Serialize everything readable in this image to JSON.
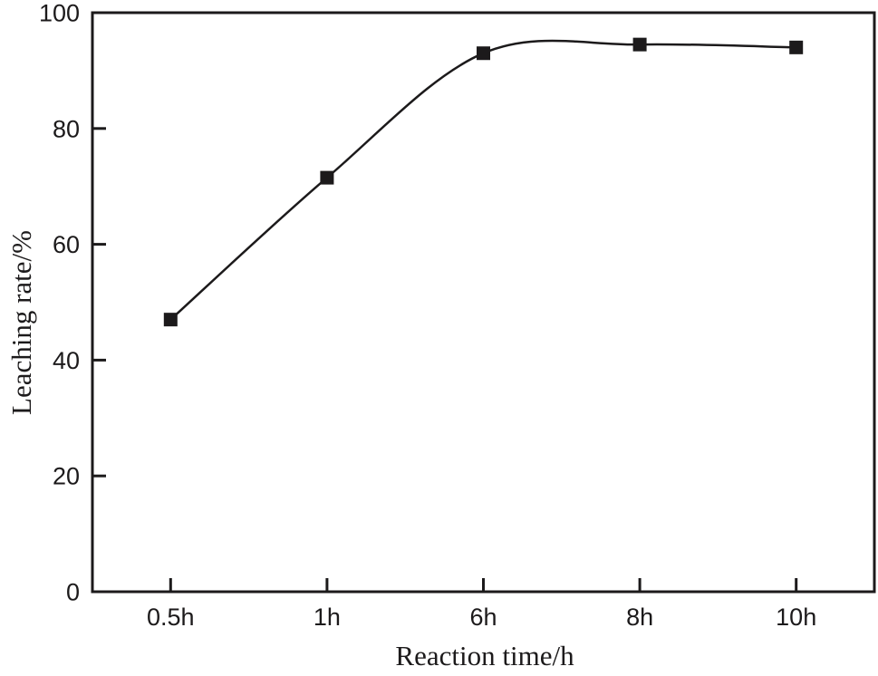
{
  "chart_data": {
    "type": "line",
    "title": "",
    "xlabel": "Reaction time/h",
    "ylabel": "Leaching rate/%",
    "categories": [
      "0.5h",
      "1h",
      "6h",
      "8h",
      "10h"
    ],
    "series": [
      {
        "name": "Leaching rate",
        "values": [
          47,
          71.5,
          93,
          94.5,
          94
        ]
      }
    ],
    "ylim": [
      0,
      100
    ],
    "y_ticks": [
      0,
      20,
      40,
      60,
      80,
      100
    ],
    "grid": false,
    "legend_position": "none",
    "marker": "square",
    "line_style": "smooth-spline",
    "ink_color": "#1c1a1b",
    "background_color": "#ffffff"
  }
}
